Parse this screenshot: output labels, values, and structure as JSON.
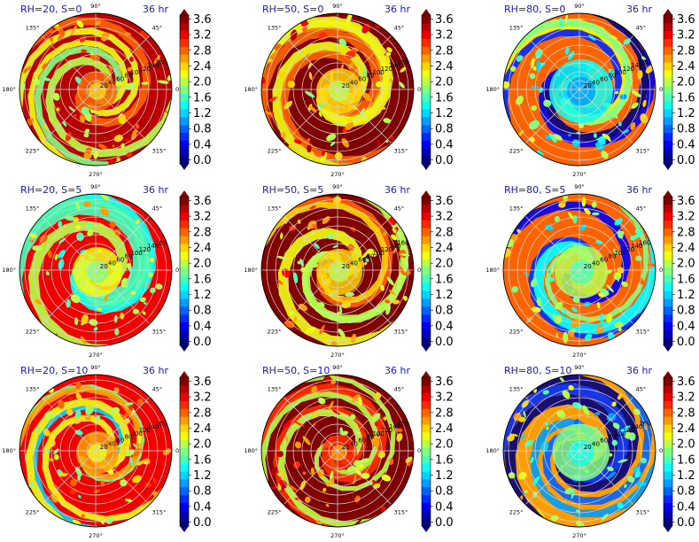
{
  "chart_data": {
    "type": "heatmap",
    "layout": {
      "rows": 3,
      "cols": 3
    },
    "time_label": "36 hr",
    "angular_ticks": [
      "90°",
      "45°",
      "0°",
      "315°",
      "270°",
      "225°",
      "180°",
      "135°"
    ],
    "radial_ticks": [
      "20",
      "40",
      "60",
      "80",
      "100",
      "120",
      "140",
      "160"
    ],
    "colorbar": {
      "ticks": [
        "0.0",
        "0.4",
        "0.8",
        "1.2",
        "1.6",
        "2.0",
        "2.4",
        "2.8",
        "3.2",
        "3.6"
      ],
      "range": [
        0.0,
        3.6
      ],
      "extend": "both",
      "colormap": "jet",
      "levels": 19
    },
    "panels": [
      {
        "title": "RH=20, S=0",
        "time": "36 hr",
        "rh": 20,
        "shear": 0,
        "core_level": 2.8,
        "field_mean": 3.4
      },
      {
        "title": "RH=50, S=0",
        "time": "36 hr",
        "rh": 50,
        "shear": 0,
        "core_level": 2.4,
        "field_mean": 3.6
      },
      {
        "title": "RH=80, S=0",
        "time": "36 hr",
        "rh": 80,
        "shear": 0,
        "core_level": 1.4,
        "field_mean": 2.8
      },
      {
        "title": "RH=20, S=5",
        "time": "36 hr",
        "rh": 20,
        "shear": 5,
        "core_level": 2.2,
        "field_mean": 3.3
      },
      {
        "title": "RH=50, S=5",
        "time": "36 hr",
        "rh": 50,
        "shear": 5,
        "core_level": 2.4,
        "field_mean": 3.5
      },
      {
        "title": "RH=80, S=5",
        "time": "36 hr",
        "rh": 80,
        "shear": 5,
        "core_level": 2.0,
        "field_mean": 2.9
      },
      {
        "title": "RH=20, S=10",
        "time": "36 hr",
        "rh": 20,
        "shear": 10,
        "core_level": 2.6,
        "field_mean": 3.2
      },
      {
        "title": "RH=50, S=10",
        "time": "36 hr",
        "rh": 50,
        "shear": 10,
        "core_level": 3.0,
        "field_mean": 3.6
      },
      {
        "title": "RH=80, S=10",
        "time": "36 hr",
        "rh": 80,
        "shear": 10,
        "core_level": 1.8,
        "field_mean": 2.6
      }
    ]
  }
}
